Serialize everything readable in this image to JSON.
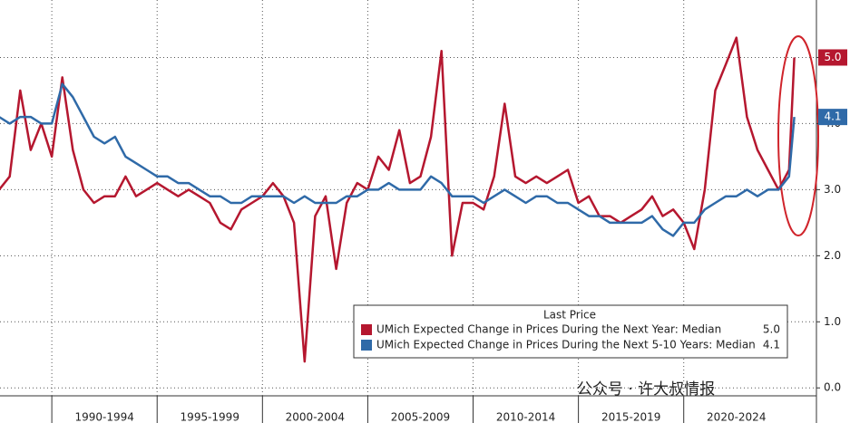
{
  "chart_data": {
    "type": "line",
    "x": [
      1987.5,
      1988,
      1988.5,
      1989,
      1989.5,
      1990,
      1990.5,
      1991,
      1991.5,
      1992,
      1992.5,
      1993,
      1993.5,
      1994,
      1994.5,
      1995,
      1995.5,
      1996,
      1996.5,
      1997,
      1997.5,
      1998,
      1998.5,
      1999,
      1999.5,
      2000,
      2000.5,
      2001,
      2001.5,
      2002,
      2002.5,
      2003,
      2003.5,
      2004,
      2004.5,
      2005,
      2005.5,
      2006,
      2006.5,
      2007,
      2007.5,
      2008,
      2008.5,
      2009,
      2009.5,
      2010,
      2010.5,
      2011,
      2011.5,
      2012,
      2012.5,
      2013,
      2013.5,
      2014,
      2014.5,
      2015,
      2015.5,
      2016,
      2016.5,
      2017,
      2017.5,
      2018,
      2018.5,
      2019,
      2019.5,
      2020,
      2020.5,
      2021,
      2021.5,
      2022,
      2022.5,
      2023,
      2023.5,
      2024,
      2024.5,
      2025,
      2025.25
    ],
    "series": [
      {
        "name": "UMich Expected Change in Prices During the Next Year: Median",
        "color": "#b5172f",
        "last_value_label": "5.0",
        "values": [
          3.0,
          3.2,
          4.5,
          3.6,
          4.0,
          3.5,
          4.7,
          3.6,
          3.0,
          2.8,
          2.9,
          2.9,
          3.2,
          2.9,
          3.0,
          3.1,
          3.0,
          2.9,
          3.0,
          2.9,
          2.8,
          2.5,
          2.4,
          2.7,
          2.8,
          2.9,
          3.1,
          2.9,
          2.5,
          0.4,
          2.6,
          2.9,
          1.8,
          2.8,
          3.1,
          3.0,
          3.5,
          3.3,
          3.9,
          3.1,
          3.2,
          3.8,
          5.1,
          2.0,
          2.8,
          2.8,
          2.7,
          3.2,
          4.3,
          3.2,
          3.1,
          3.2,
          3.1,
          3.2,
          3.3,
          2.8,
          2.9,
          2.6,
          2.6,
          2.5,
          2.6,
          2.7,
          2.9,
          2.6,
          2.7,
          2.5,
          2.1,
          3.0,
          4.5,
          4.9,
          5.3,
          4.1,
          3.6,
          3.3,
          3.0,
          3.3,
          5.0
        ]
      },
      {
        "name": "UMich Expected Change in Prices During the Next 5-10 Years: Median",
        "color": "#2f6aa8",
        "last_value_label": "4.1",
        "values": [
          4.1,
          4.0,
          4.1,
          4.1,
          4.0,
          4.0,
          4.6,
          4.4,
          4.1,
          3.8,
          3.7,
          3.8,
          3.5,
          3.4,
          3.3,
          3.2,
          3.2,
          3.1,
          3.1,
          3.0,
          2.9,
          2.9,
          2.8,
          2.8,
          2.9,
          2.9,
          2.9,
          2.9,
          2.8,
          2.9,
          2.8,
          2.8,
          2.8,
          2.9,
          2.9,
          3.0,
          3.0,
          3.1,
          3.0,
          3.0,
          3.0,
          3.2,
          3.1,
          2.9,
          2.9,
          2.9,
          2.8,
          2.9,
          3.0,
          2.9,
          2.8,
          2.9,
          2.9,
          2.8,
          2.8,
          2.7,
          2.6,
          2.6,
          2.5,
          2.5,
          2.5,
          2.5,
          2.6,
          2.4,
          2.3,
          2.5,
          2.5,
          2.7,
          2.8,
          2.9,
          2.9,
          3.0,
          2.9,
          3.0,
          3.0,
          3.2,
          4.1
        ]
      }
    ],
    "legend_title": "Last Price",
    "xlim": [
      1987.54,
      2026.3
    ],
    "xticks": [
      {
        "value": 1990,
        "label": "1990-1994"
      },
      {
        "value": 1995,
        "label": "1995-1999"
      },
      {
        "value": 2000,
        "label": "2000-2004"
      },
      {
        "value": 2005,
        "label": "2005-2009"
      },
      {
        "value": 2010,
        "label": "2010-2014"
      },
      {
        "value": 2015,
        "label": "2015-2019"
      },
      {
        "value": 2020,
        "label": "2020-2024"
      }
    ],
    "ylim": [
      -0.12,
      5.87
    ],
    "yticks": [
      {
        "value": 0,
        "label": "0.0"
      },
      {
        "value": 1,
        "label": "1.0"
      },
      {
        "value": 2,
        "label": "2.0"
      },
      {
        "value": 3,
        "label": "3.0"
      },
      {
        "value": 4,
        "label": "4.0"
      },
      {
        "value": 5,
        "label": "5.0"
      }
    ],
    "grid": true,
    "watermark": "公众号 · 许大叔情报"
  }
}
